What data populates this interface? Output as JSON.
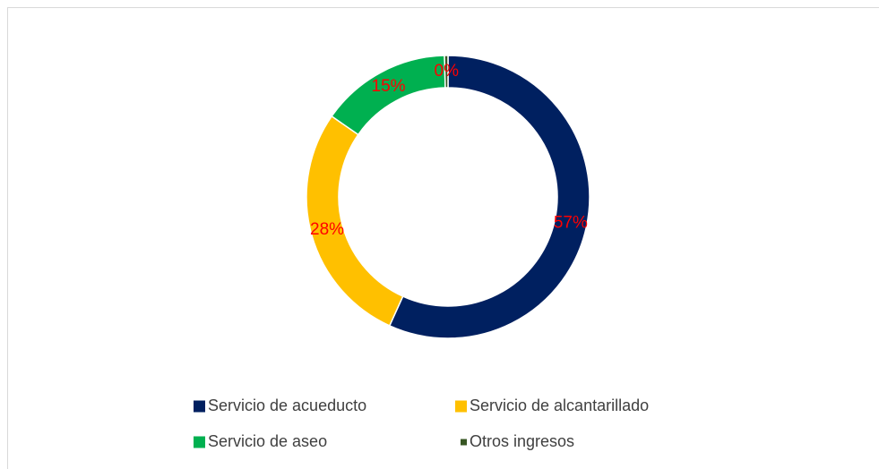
{
  "chart_data": {
    "type": "donut",
    "categories": [
      "Servicio de acueducto",
      "Servicio de alcantarillado",
      "Servicio de aseo",
      "Otros ingresos"
    ],
    "values": [
      57,
      28,
      15,
      0.4
    ],
    "value_labels": [
      "57%",
      "28%",
      "15%",
      "0%"
    ],
    "colors": [
      "#002060",
      "#ffc000",
      "#00b050",
      "#375623"
    ],
    "legend": "bottom"
  }
}
